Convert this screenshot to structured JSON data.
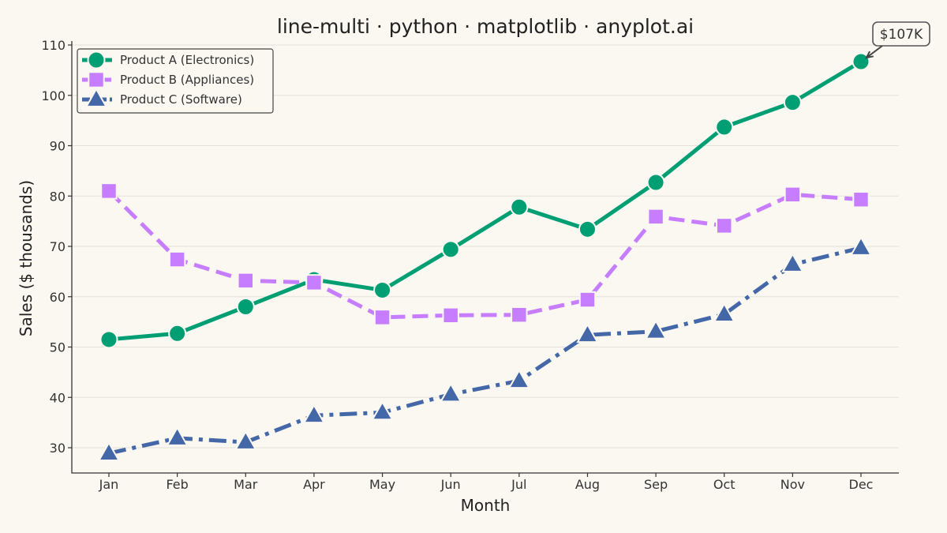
{
  "chart_data": {
    "type": "line",
    "title": "line-multi · python · matplotlib · anyplot.ai",
    "xlabel": "Month",
    "ylabel": "Sales ($ thousands)",
    "categories": [
      "Jan",
      "Feb",
      "Mar",
      "Apr",
      "May",
      "Jun",
      "Jul",
      "Aug",
      "Sep",
      "Oct",
      "Nov",
      "Dec"
    ],
    "ylim": [
      25,
      110
    ],
    "yticks": [
      30,
      40,
      50,
      60,
      70,
      80,
      90,
      100,
      110
    ],
    "grid": "horizontal",
    "legend_position": "top-left",
    "series": [
      {
        "name": "Product A (Electronics)",
        "color": "#009E73",
        "marker": "circle",
        "linestyle": "solid",
        "values": [
          51.5,
          52.7,
          58.0,
          63.4,
          61.3,
          69.4,
          77.8,
          73.4,
          82.7,
          93.7,
          98.6,
          106.7
        ]
      },
      {
        "name": "Product B (Appliances)",
        "color": "#C77DFF",
        "marker": "square",
        "linestyle": "dashed",
        "values": [
          81.0,
          67.4,
          63.2,
          62.8,
          55.9,
          56.3,
          56.4,
          59.4,
          75.9,
          74.1,
          80.3,
          79.3
        ]
      },
      {
        "name": "Product C (Software)",
        "color": "#4467A8",
        "marker": "triangle",
        "linestyle": "dashdot",
        "values": [
          28.9,
          31.9,
          31.1,
          36.4,
          37.0,
          40.6,
          43.3,
          52.4,
          53.1,
          56.5,
          66.4,
          69.7
        ]
      }
    ],
    "annotations": [
      {
        "text": "$107K",
        "series": 0,
        "index": 11
      }
    ]
  }
}
